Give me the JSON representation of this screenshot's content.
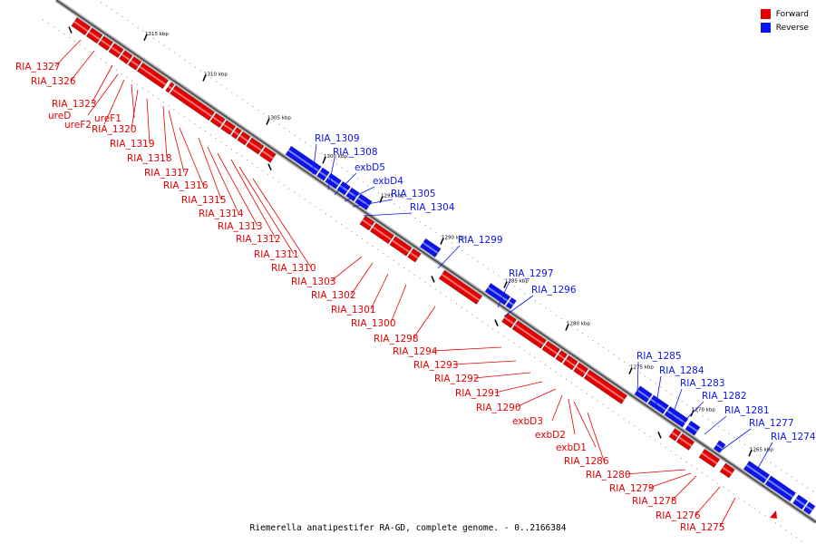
{
  "colors": {
    "forward": "#e60000",
    "reverse": "#0a14f0",
    "backbone": "#555555"
  },
  "legend": [
    {
      "label": "Forward",
      "color": "#e60000"
    },
    {
      "label": "Reverse",
      "color": "#0a14f0"
    }
  ],
  "caption": "Riemerella anatipestifer RA-GD, complete genome. - 0..2166384",
  "tick_labels": [
    {
      "kbp": 1315,
      "label": "1315 kbp"
    },
    {
      "kbp": 1310,
      "label": "1310 kbp"
    },
    {
      "kbp": 1305,
      "label": "1305 kbp"
    },
    {
      "kbp": 1300,
      "label": "1300 kbp"
    },
    {
      "kbp": 1295,
      "label": "1295 kbp"
    },
    {
      "kbp": 1290,
      "label": "1290 kbp"
    },
    {
      "kbp": 1285,
      "label": "1285 kbp"
    },
    {
      "kbp": 1280,
      "label": "1280 kbp"
    },
    {
      "kbp": 1275,
      "label": "1275 kbp"
    },
    {
      "kbp": 1270,
      "label": "1270 kbp"
    },
    {
      "kbp": 1265,
      "label": "1265 kbp"
    }
  ],
  "genes": [
    {
      "name": "RIA_1327",
      "strand": "forward"
    },
    {
      "name": "RIA_1326",
      "strand": "forward"
    },
    {
      "name": "RIA_1323",
      "strand": "forward"
    },
    {
      "name": "ureD",
      "strand": "forward"
    },
    {
      "name": "ureF2",
      "strand": "forward"
    },
    {
      "name": "ureF1",
      "strand": "forward"
    },
    {
      "name": "RIA_1320",
      "strand": "forward"
    },
    {
      "name": "RIA_1319",
      "strand": "forward"
    },
    {
      "name": "RIA_1318",
      "strand": "forward"
    },
    {
      "name": "RIA_1317",
      "strand": "forward"
    },
    {
      "name": "RIA_1316",
      "strand": "forward"
    },
    {
      "name": "RIA_1315",
      "strand": "forward"
    },
    {
      "name": "RIA_1314",
      "strand": "forward"
    },
    {
      "name": "RIA_1313",
      "strand": "forward"
    },
    {
      "name": "RIA_1312",
      "strand": "forward"
    },
    {
      "name": "RIA_1311",
      "strand": "forward"
    },
    {
      "name": "RIA_1310",
      "strand": "forward"
    },
    {
      "name": "RIA_1309",
      "strand": "reverse"
    },
    {
      "name": "RIA_1308",
      "strand": "reverse"
    },
    {
      "name": "exbD5",
      "strand": "reverse"
    },
    {
      "name": "exbD4",
      "strand": "reverse"
    },
    {
      "name": "RIA_1305",
      "strand": "reverse"
    },
    {
      "name": "RIA_1304",
      "strand": "reverse"
    },
    {
      "name": "RIA_1303",
      "strand": "forward"
    },
    {
      "name": "RIA_1302",
      "strand": "forward"
    },
    {
      "name": "RIA_1301",
      "strand": "forward"
    },
    {
      "name": "RIA_1300",
      "strand": "forward"
    },
    {
      "name": "RIA_1299",
      "strand": "reverse"
    },
    {
      "name": "RIA_1298",
      "strand": "forward"
    },
    {
      "name": "RIA_1297",
      "strand": "reverse"
    },
    {
      "name": "RIA_1296",
      "strand": "reverse"
    },
    {
      "name": "RIA_1294",
      "strand": "forward"
    },
    {
      "name": "RIA_1293",
      "strand": "forward"
    },
    {
      "name": "RIA_1292",
      "strand": "forward"
    },
    {
      "name": "RIA_1291",
      "strand": "forward"
    },
    {
      "name": "RIA_1290",
      "strand": "forward"
    },
    {
      "name": "exbD3",
      "strand": "forward"
    },
    {
      "name": "exbD2",
      "strand": "forward"
    },
    {
      "name": "exbD1",
      "strand": "forward"
    },
    {
      "name": "RIA_1286",
      "strand": "forward"
    },
    {
      "name": "RIA_1285",
      "strand": "reverse"
    },
    {
      "name": "RIA_1284",
      "strand": "reverse"
    },
    {
      "name": "RIA_1283",
      "strand": "reverse"
    },
    {
      "name": "RIA_1282",
      "strand": "reverse"
    },
    {
      "name": "RIA_1281",
      "strand": "reverse"
    },
    {
      "name": "RIA_1280",
      "strand": "forward"
    },
    {
      "name": "RIA_1279",
      "strand": "forward"
    },
    {
      "name": "RIA_1278",
      "strand": "forward"
    },
    {
      "name": "RIA_1277",
      "strand": "reverse"
    },
    {
      "name": "RIA_1276",
      "strand": "forward"
    },
    {
      "name": "RIA_1275",
      "strand": "forward"
    },
    {
      "name": "RIA_1274",
      "strand": "reverse"
    }
  ]
}
